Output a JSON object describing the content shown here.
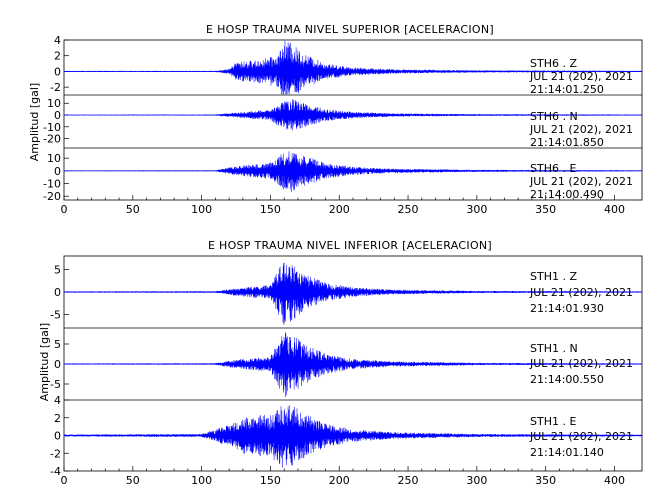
{
  "chart_data": [
    {
      "type": "line",
      "title": "E HOSP TRAUMA NIVEL SUPERIOR [ACELERACION]",
      "ylabel": "Amplitud [gal]",
      "xlabel": "",
      "xlim": [
        0,
        420
      ],
      "x_ticks": [
        "0",
        "50",
        "100",
        "150",
        "200",
        "250",
        "300",
        "350",
        "400"
      ],
      "line_color": "#0000ff",
      "grid": false,
      "series": [
        {
          "name": "STH6 . Z",
          "date": "JUL 21 (202), 2021",
          "time": "21:14:01.250",
          "ylim": [
            -3,
            4
          ],
          "y_ticks": [
            "4",
            "2",
            "0",
            "-2"
          ],
          "envelope": [
            [
              0,
              0.05
            ],
            [
              110,
              0.05
            ],
            [
              120,
              0.3
            ],
            [
              125,
              1.2
            ],
            [
              140,
              1.4
            ],
            [
              155,
              2.0
            ],
            [
              160,
              4.0
            ],
            [
              165,
              3.6
            ],
            [
              175,
              2.2
            ],
            [
              190,
              1.0
            ],
            [
              210,
              0.5
            ],
            [
              240,
              0.25
            ],
            [
              300,
              0.12
            ],
            [
              420,
              0.06
            ]
          ]
        },
        {
          "name": "STH6 . N",
          "date": "JUL 21 (202), 2021",
          "time": "21:14:01.850",
          "ylim": [
            -28,
            17
          ],
          "y_ticks": [
            "10",
            "0",
            "-10",
            "-20"
          ],
          "envelope": [
            [
              0,
              0.2
            ],
            [
              110,
              0.3
            ],
            [
              120,
              1.5
            ],
            [
              130,
              2.5
            ],
            [
              150,
              4.5
            ],
            [
              160,
              12
            ],
            [
              165,
              14
            ],
            [
              175,
              10
            ],
            [
              190,
              5
            ],
            [
              210,
              2.5
            ],
            [
              240,
              1.2
            ],
            [
              300,
              0.6
            ],
            [
              420,
              0.3
            ]
          ]
        },
        {
          "name": "STH6 . E",
          "date": "JUL 21 (202), 2021",
          "time": "21:14:00.490",
          "ylim": [
            -23,
            18
          ],
          "y_ticks": [
            "10",
            "0",
            "-10",
            "-20"
          ],
          "envelope": [
            [
              0,
              0.2
            ],
            [
              110,
              0.3
            ],
            [
              120,
              2.5
            ],
            [
              130,
              4.0
            ],
            [
              150,
              6.5
            ],
            [
              160,
              15
            ],
            [
              165,
              17
            ],
            [
              175,
              12
            ],
            [
              190,
              6
            ],
            [
              210,
              3
            ],
            [
              240,
              1.5
            ],
            [
              300,
              0.7
            ],
            [
              420,
              0.3
            ]
          ]
        }
      ]
    },
    {
      "type": "line",
      "title": "E HOSP TRAUMA NIVEL INFERIOR [ACELERACION]",
      "ylabel": "Amplitud [gal]",
      "xlabel": "",
      "xlim": [
        0,
        420
      ],
      "x_ticks": [
        "0",
        "50",
        "100",
        "150",
        "200",
        "250",
        "300",
        "350",
        "400"
      ],
      "line_color": "#0000ff",
      "grid": false,
      "series": [
        {
          "name": "STH1 . Z",
          "date": "JUL 21 (202), 2021",
          "time": "21:14:01.930",
          "ylim": [
            -8,
            8
          ],
          "y_ticks": [
            "5",
            "0",
            "-5"
          ],
          "envelope": [
            [
              0,
              0.1
            ],
            [
              110,
              0.15
            ],
            [
              120,
              0.6
            ],
            [
              130,
              1.0
            ],
            [
              150,
              1.5
            ],
            [
              160,
              7.5
            ],
            [
              165,
              6.5
            ],
            [
              175,
              4
            ],
            [
              190,
              2
            ],
            [
              210,
              1
            ],
            [
              240,
              0.5
            ],
            [
              300,
              0.2
            ],
            [
              420,
              0.1
            ]
          ]
        },
        {
          "name": "STH1 . N",
          "date": "JUL 21 (202), 2021",
          "time": "21:14:00.550",
          "ylim": [
            -9,
            9
          ],
          "y_ticks": [
            "5",
            "0",
            "-5"
          ],
          "envelope": [
            [
              0,
              0.1
            ],
            [
              110,
              0.15
            ],
            [
              120,
              0.8
            ],
            [
              130,
              1.2
            ],
            [
              150,
              2.0
            ],
            [
              160,
              8.5
            ],
            [
              165,
              7.5
            ],
            [
              175,
              5
            ],
            [
              190,
              2.5
            ],
            [
              210,
              1.2
            ],
            [
              240,
              0.6
            ],
            [
              300,
              0.25
            ],
            [
              420,
              0.1
            ]
          ]
        },
        {
          "name": "STH1 . E",
          "date": "JUL 21 (202), 2021",
          "time": "21:14:01.140",
          "ylim": [
            -4,
            4
          ],
          "y_ticks": [
            "4",
            "2",
            "0",
            "-2",
            "-4"
          ],
          "envelope": [
            [
              0,
              0.1
            ],
            [
              100,
              0.15
            ],
            [
              120,
              1.2
            ],
            [
              130,
              2.0
            ],
            [
              150,
              2.5
            ],
            [
              160,
              3.8
            ],
            [
              165,
              3.5
            ],
            [
              175,
              2.5
            ],
            [
              190,
              1.3
            ],
            [
              210,
              0.7
            ],
            [
              240,
              0.35
            ],
            [
              300,
              0.15
            ],
            [
              420,
              0.08
            ]
          ]
        }
      ]
    }
  ]
}
